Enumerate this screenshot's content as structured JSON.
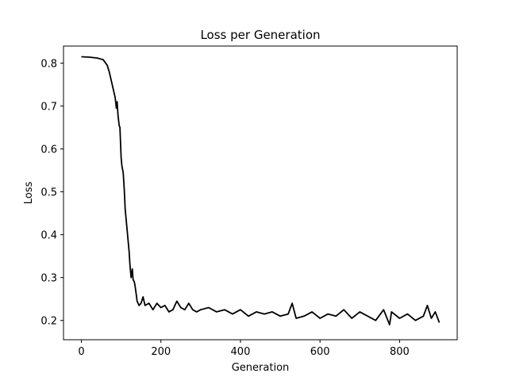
{
  "chart_data": {
    "type": "line",
    "title": "Loss per Generation",
    "xlabel": "Generation",
    "ylabel": "Loss",
    "xlim": [
      -45,
      945
    ],
    "ylim": [
      0.155,
      0.84
    ],
    "xticks": [
      0,
      200,
      400,
      600,
      800
    ],
    "yticks": [
      0.2,
      0.3,
      0.4,
      0.5,
      0.6,
      0.7,
      0.8
    ],
    "grid": false,
    "line_color": "#000000",
    "series": [
      {
        "x": [
          0,
          20,
          40,
          55,
          65,
          70,
          75,
          80,
          85,
          88,
          90,
          92,
          95,
          97,
          100,
          102,
          105,
          108,
          110,
          113,
          115,
          118,
          120,
          122,
          125,
          128,
          130,
          133,
          135,
          138,
          140,
          145,
          150,
          155,
          160,
          170,
          180,
          190,
          200,
          210,
          220,
          230,
          240,
          250,
          260,
          270,
          280,
          290,
          300,
          320,
          340,
          360,
          380,
          400,
          420,
          440,
          460,
          480,
          500,
          520,
          530,
          540,
          560,
          580,
          600,
          620,
          640,
          660,
          680,
          700,
          720,
          740,
          760,
          775,
          780,
          800,
          820,
          840,
          860,
          870,
          880,
          890,
          900
        ],
        "y": [
          0.815,
          0.814,
          0.812,
          0.808,
          0.795,
          0.78,
          0.76,
          0.74,
          0.72,
          0.695,
          0.71,
          0.68,
          0.655,
          0.65,
          0.58,
          0.56,
          0.545,
          0.5,
          0.46,
          0.43,
          0.41,
          0.38,
          0.36,
          0.33,
          0.3,
          0.32,
          0.295,
          0.29,
          0.28,
          0.26,
          0.245,
          0.235,
          0.24,
          0.255,
          0.235,
          0.24,
          0.225,
          0.24,
          0.23,
          0.235,
          0.22,
          0.225,
          0.245,
          0.23,
          0.225,
          0.24,
          0.225,
          0.22,
          0.225,
          0.23,
          0.22,
          0.225,
          0.215,
          0.225,
          0.21,
          0.22,
          0.215,
          0.22,
          0.21,
          0.215,
          0.24,
          0.205,
          0.21,
          0.22,
          0.205,
          0.215,
          0.21,
          0.225,
          0.205,
          0.22,
          0.21,
          0.2,
          0.225,
          0.19,
          0.22,
          0.205,
          0.215,
          0.2,
          0.21,
          0.235,
          0.205,
          0.22,
          0.195
        ]
      }
    ]
  }
}
